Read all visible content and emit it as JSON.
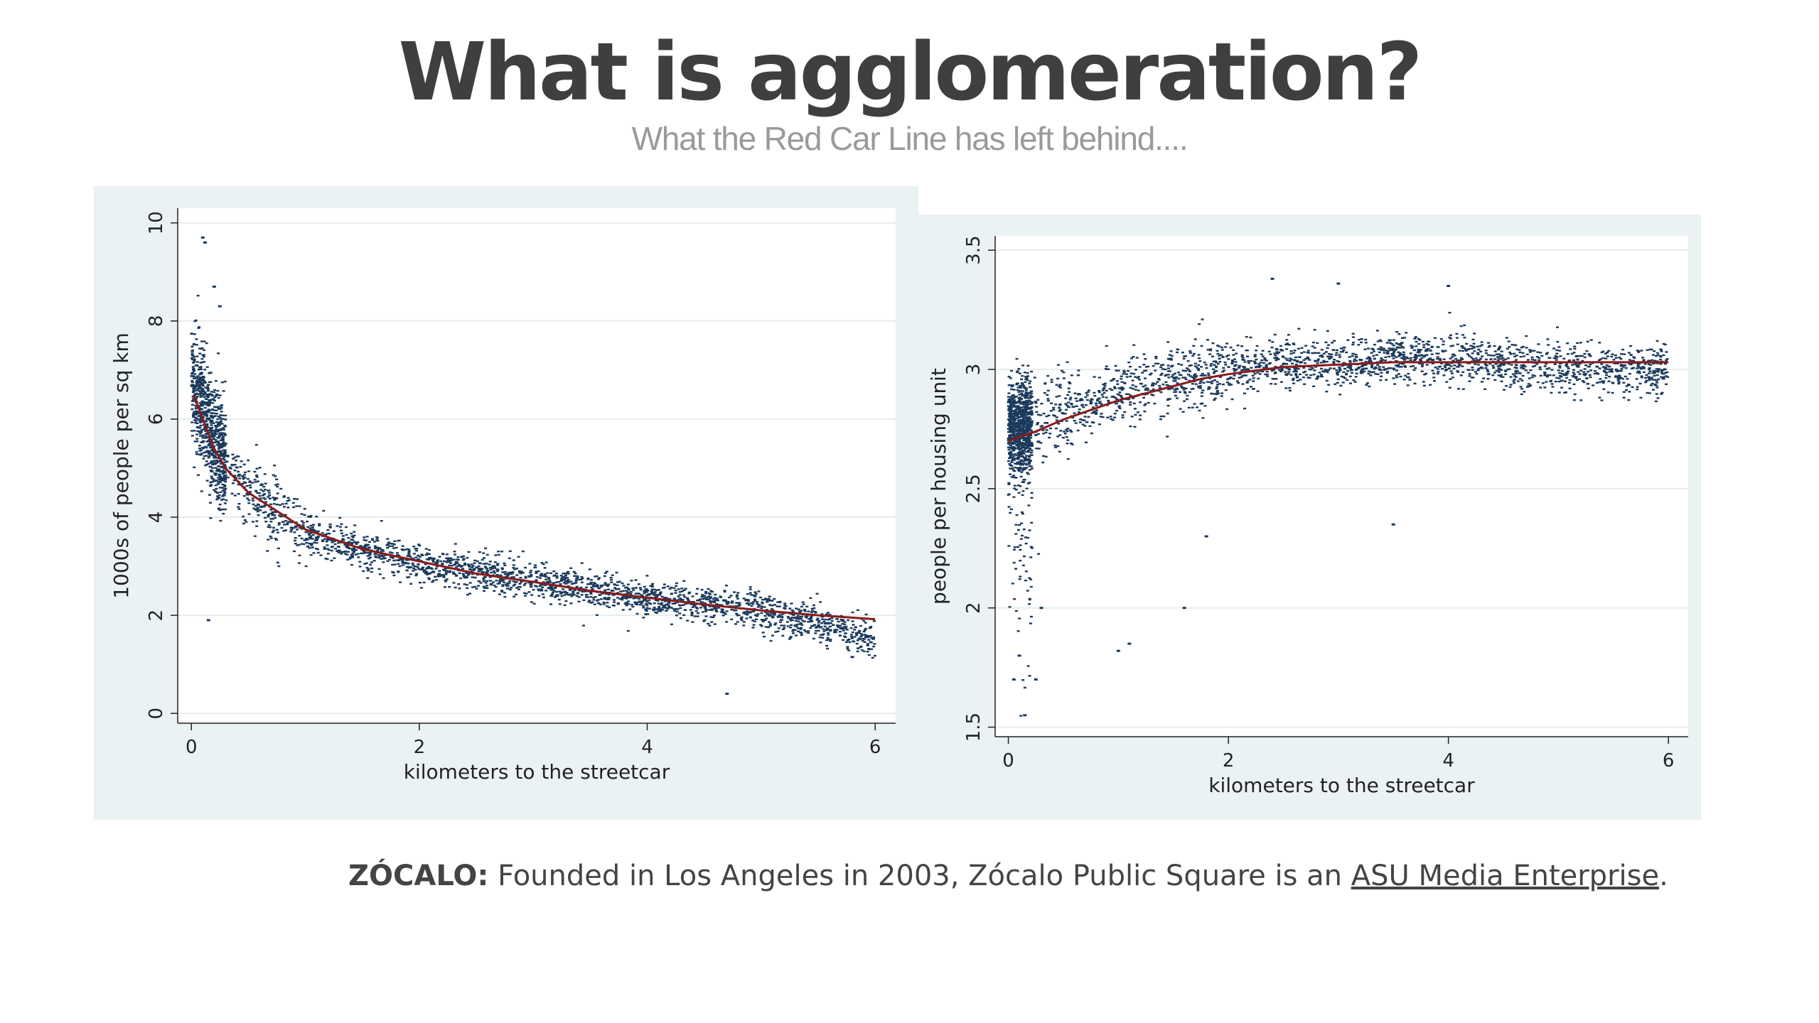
{
  "slide": {
    "title": "What is agglomeration?",
    "subtitle": "What the Red Car Line has left behind....",
    "caption": {
      "brand": "ZÓCALO:",
      "text": " Founded in Los Angeles in 2003, Zócalo Public Square is an ",
      "link_text": "ASU Media Enterprise",
      "end": "."
    }
  },
  "colors": {
    "panel_bg": "#eaf2f3",
    "points": "#1b3a5c",
    "fit_line": "#8b1a1a",
    "grid": "#e6ecec"
  },
  "chart_data": [
    {
      "type": "scatter",
      "title": "",
      "xlabel": "kilometers to the streetcar",
      "ylabel": "1000s of people per sq km",
      "xlim": [
        0,
        6
      ],
      "ylim": [
        0,
        10
      ],
      "xticks": [
        "0",
        "2",
        "4",
        "6"
      ],
      "yticks": [
        "0",
        "2",
        "4",
        "6",
        "8",
        "10"
      ],
      "grid": true,
      "legend": "none",
      "series": [
        {
          "kind": "scatter",
          "point_count_approx": 3000,
          "trend_points": [
            [
              0.02,
              6.7
            ],
            [
              0.1,
              6.2
            ],
            [
              0.2,
              5.6
            ],
            [
              0.3,
              5.1
            ],
            [
              0.5,
              4.5
            ],
            [
              1.0,
              3.7
            ],
            [
              1.5,
              3.35
            ],
            [
              2.0,
              3.05
            ],
            [
              3.0,
              2.7
            ],
            [
              4.0,
              2.35
            ],
            [
              5.0,
              2.1
            ],
            [
              5.5,
              1.85
            ],
            [
              6.0,
              1.5
            ]
          ],
          "outliers": [
            [
              0.1,
              9.7
            ],
            [
              0.12,
              9.6
            ],
            [
              0.2,
              8.7
            ],
            [
              0.25,
              8.3
            ],
            [
              0.15,
              1.9
            ],
            [
              4.7,
              0.4
            ],
            [
              5.8,
              1.15
            ]
          ]
        },
        {
          "kind": "fit",
          "points": [
            [
              0.02,
              6.5
            ],
            [
              0.1,
              6.0
            ],
            [
              0.2,
              5.4
            ],
            [
              0.3,
              5.0
            ],
            [
              0.5,
              4.5
            ],
            [
              1.0,
              3.75
            ],
            [
              1.5,
              3.35
            ],
            [
              2.0,
              3.1
            ],
            [
              2.5,
              2.85
            ],
            [
              3.0,
              2.68
            ],
            [
              3.5,
              2.5
            ],
            [
              4.0,
              2.36
            ],
            [
              4.5,
              2.22
            ],
            [
              5.0,
              2.1
            ],
            [
              5.5,
              2.0
            ],
            [
              6.0,
              1.92
            ]
          ]
        }
      ]
    },
    {
      "type": "scatter",
      "title": "",
      "xlabel": "kilometers to the streetcar",
      "ylabel": "people per housing unit",
      "xlim": [
        0,
        6
      ],
      "ylim": [
        1.5,
        3.5
      ],
      "xticks": [
        "0",
        "2",
        "4",
        "6"
      ],
      "yticks": [
        "1.5",
        "2",
        "2.5",
        "3",
        "3.5"
      ],
      "grid": true,
      "legend": "none",
      "series": [
        {
          "kind": "scatter",
          "point_count_approx": 3000,
          "trend_points": [
            [
              0.0,
              2.75
            ],
            [
              0.5,
              2.82
            ],
            [
              1.0,
              2.9
            ],
            [
              1.5,
              2.96
            ],
            [
              2.0,
              3.0
            ],
            [
              2.5,
              3.02
            ],
            [
              3.0,
              3.03
            ],
            [
              4.0,
              3.05
            ],
            [
              5.0,
              3.0
            ],
            [
              6.0,
              3.0
            ]
          ],
          "outliers": [
            [
              0.05,
              1.7
            ],
            [
              0.1,
              1.8
            ],
            [
              0.15,
              1.55
            ],
            [
              0.25,
              1.7
            ],
            [
              0.3,
              2.0
            ],
            [
              1.0,
              1.82
            ],
            [
              1.1,
              1.85
            ],
            [
              1.6,
              2.0
            ],
            [
              1.8,
              2.3
            ],
            [
              3.5,
              2.35
            ],
            [
              2.4,
              3.38
            ],
            [
              3.0,
              3.36
            ],
            [
              4.0,
              3.35
            ]
          ]
        },
        {
          "kind": "fit",
          "points": [
            [
              0.0,
              2.7
            ],
            [
              0.25,
              2.74
            ],
            [
              0.5,
              2.79
            ],
            [
              0.75,
              2.83
            ],
            [
              1.0,
              2.87
            ],
            [
              1.25,
              2.9
            ],
            [
              1.5,
              2.93
            ],
            [
              1.75,
              2.96
            ],
            [
              2.0,
              2.98
            ],
            [
              2.5,
              3.01
            ],
            [
              3.0,
              3.02
            ],
            [
              3.5,
              3.03
            ],
            [
              4.0,
              3.03
            ],
            [
              5.0,
              3.03
            ],
            [
              6.0,
              3.03
            ]
          ]
        }
      ]
    }
  ]
}
